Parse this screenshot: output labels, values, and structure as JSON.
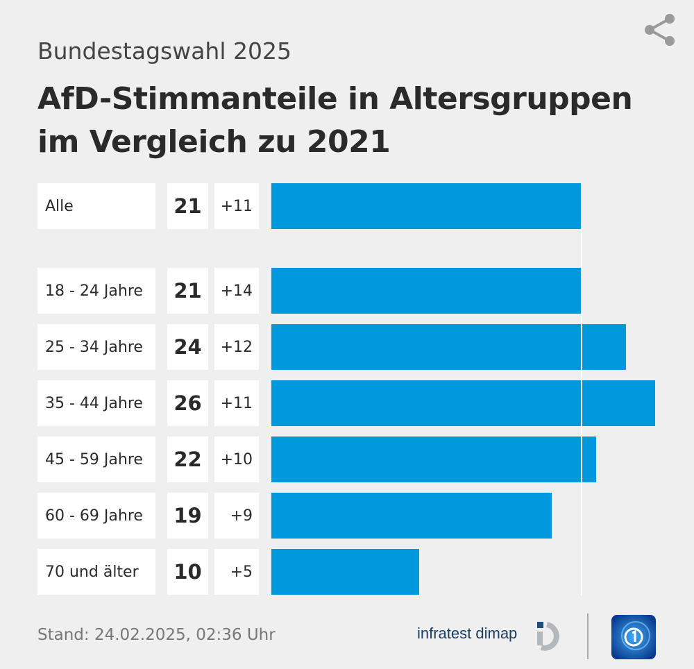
{
  "header": {
    "subtitle": "Bundestagswahl 2025",
    "title_line1": "AfD-Stimmanteile in Altersgruppen",
    "title_line2": "im Vergleich zu 2021",
    "share_icon": "share-icon"
  },
  "chart_data": {
    "type": "bar",
    "orientation": "horizontal",
    "title": "AfD-Stimmanteile in Altersgruppen im Vergleich zu 2021",
    "subtitle": "Bundestagswahl 2025",
    "categories": [
      "Alle",
      "18 - 24 Jahre",
      "25 - 34 Jahre",
      "35 - 44 Jahre",
      "45 - 59 Jahre",
      "60 - 69 Jahre",
      "70 und älter"
    ],
    "values": [
      21,
      21,
      24,
      26,
      22,
      19,
      10
    ],
    "changes": [
      "+11",
      "+14",
      "+12",
      "+11",
      "+10",
      "+9",
      "+5"
    ],
    "reference_line": 21,
    "xlim": [
      0,
      26.2
    ],
    "bar_color": "#0098dc",
    "grid": false
  },
  "footer": {
    "stand": "Stand:  24.02.2025, 02:36 Uhr",
    "source": "infratest dimap",
    "logo_text": "infratest dimap"
  }
}
